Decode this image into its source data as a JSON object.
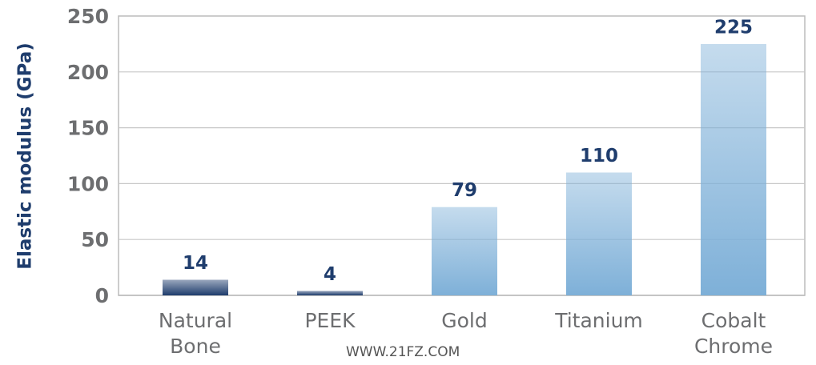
{
  "chart_data": {
    "type": "bar",
    "y_axis_label": "Elastic modulus (GPa)",
    "categories": [
      "Natural Bone",
      "PEEK",
      "Gold",
      "Titanium",
      "Cobalt Chrome"
    ],
    "values": [
      14,
      4,
      79,
      110,
      225
    ],
    "colors": [
      "#1f3d6d",
      "#1f3d6d",
      "#7eb0d8",
      "#7eb0d8",
      "#7eb0d8"
    ],
    "ylim": [
      0,
      250
    ],
    "yticks": [
      0,
      50,
      100,
      150,
      200,
      250
    ],
    "grid": true,
    "watermark": "WWW.21FZ.COM"
  }
}
